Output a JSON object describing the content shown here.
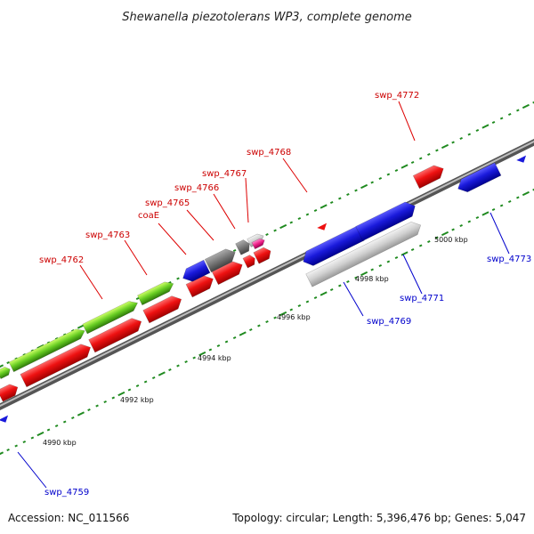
{
  "title": "Shewanella piezotolerans WP3, complete genome",
  "footer": {
    "accession": "Accession: NC_011566",
    "stats": "Topology: circular; Length: 5,396,476 bp; Genes: 5,047"
  },
  "colors": {
    "backbone": "#8a8a8a",
    "gene_red": "#ee1111",
    "gene_blue": "#1a1adb",
    "gene_gray": "#777777",
    "gene_lightgray": "#c8c8c8",
    "gene_green": "#66cc22",
    "gene_pink": "#ee2288",
    "tick_dot": "#1f8a1f",
    "label_red": "#cc0000",
    "label_blue": "#0000cc"
  },
  "ticks": [
    "4990 kbp",
    "4992 kbp",
    "4994 kbp",
    "4996 kbp",
    "4998 kbp",
    "5000 kbp"
  ],
  "labels": {
    "red": [
      "swp_4762",
      "swp_4763",
      "coaE",
      "swp_4765",
      "swp_4766",
      "swp_4767",
      "swp_4768",
      "swp_4772"
    ],
    "blue": [
      "swp_4759",
      "swp_4769",
      "swp_4771",
      "swp_4773"
    ]
  }
}
